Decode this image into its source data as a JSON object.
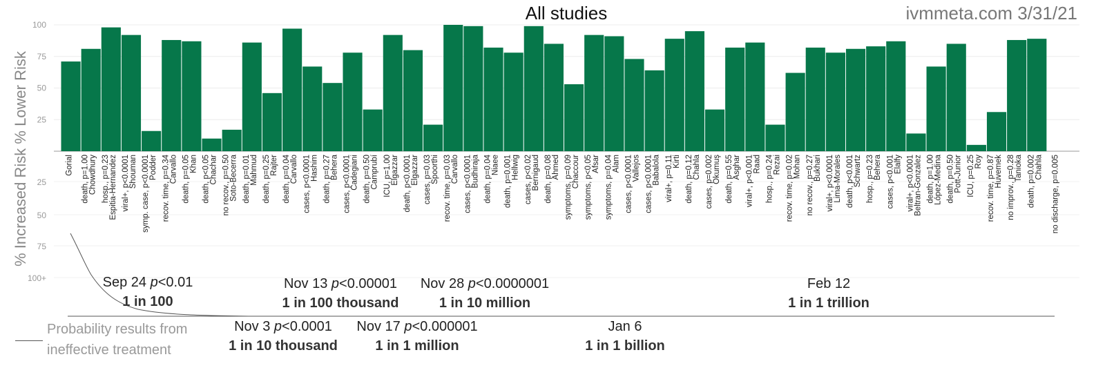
{
  "header": {
    "title": "All studies",
    "brand": "ivmmeta.com 3/31/21"
  },
  "legend": {
    "line1": "Probability results from",
    "line2": "ineffective treatment"
  },
  "chart_data": {
    "type": "bar",
    "title": "All studies",
    "ylabel": "% Increased Risk % Lower Risk",
    "ylim": [
      0,
      100
    ],
    "yticks_upper": [
      "100",
      "75",
      "50",
      "25"
    ],
    "yticks_lower": [
      "25",
      "50",
      "75",
      "100+"
    ],
    "bar_color": "#06774a",
    "grid": true,
    "bars": [
      {
        "label": "Gorial",
        "value": 71
      },
      {
        "label": "death, p=1.00\nChowdhury",
        "value": 81
      },
      {
        "label": "hosp., p=0.23\nEspitia-Hernandez",
        "value": 98
      },
      {
        "label": "viral+, p<0.0001\nShouman",
        "value": 92
      },
      {
        "label": "symp. case, p<0.0001\nPodder",
        "value": 16
      },
      {
        "label": "recov. time, p=0.34\nCarvallo",
        "value": 88
      },
      {
        "label": "death, p=0.05\nKhan",
        "value": 87
      },
      {
        "label": "death, p<0.05\nChachar",
        "value": 10
      },
      {
        "label": "no recov., p=0.50\nSoto-Becerra",
        "value": 17
      },
      {
        "label": "death, p=0.01\nMahmud",
        "value": 86
      },
      {
        "label": "death, p=0.25\nRajter",
        "value": 46
      },
      {
        "label": "death, p=0.04\nCarvallo",
        "value": 97
      },
      {
        "label": "cases, p<0.0001\nHashim",
        "value": 67
      },
      {
        "label": "death, p=0.27\nBehera",
        "value": 54
      },
      {
        "label": "cases, p<0.0001\nCadegiani",
        "value": 78
      },
      {
        "label": "death, p=0.50\nCamprubí",
        "value": 33
      },
      {
        "label": "ICU, p=1.00\nElgazzar",
        "value": 92
      },
      {
        "label": "death, p<0.0001\nElgazzar",
        "value": 80
      },
      {
        "label": "cases, p=0.03\nSpoorthi",
        "value": 21
      },
      {
        "label": "recov. time, p=0.03\nCarvallo",
        "value": 100
      },
      {
        "label": "cases, p<0.0001\nBudhiraja",
        "value": 99
      },
      {
        "label": "death, p=0.04\nNiaee",
        "value": 82
      },
      {
        "label": "death, p=0.001\nHellwig",
        "value": 78
      },
      {
        "label": "cases, p<0.02\nBernigaud",
        "value": 99
      },
      {
        "label": "death, p=0.08\nAhmed",
        "value": 85
      },
      {
        "label": "symptoms, p=0.09\nChaccour",
        "value": 53
      },
      {
        "label": "symptoms, p<0.05\nAfsar",
        "value": 92
      },
      {
        "label": "symptoms, p=0.04\nAlam",
        "value": 91
      },
      {
        "label": "cases, p<0.0001\nVallejos",
        "value": 73
      },
      {
        "label": "cases, p<0.0001\nBabalola",
        "value": 64
      },
      {
        "label": "viral+, p=0.11\nKirti",
        "value": 89
      },
      {
        "label": "death, p=0.12\nChahla",
        "value": 95
      },
      {
        "label": "cases, p=0.002\nOkumuş",
        "value": 33
      },
      {
        "label": "death, p=0.55\nAsghar",
        "value": 82
      },
      {
        "label": "viral+, p<0.001\nRaad",
        "value": 86
      },
      {
        "label": "hosp., p=0.24\nRezai",
        "value": 21
      },
      {
        "label": "recov. time, p=0.02\nMohan",
        "value": 62
      },
      {
        "label": "no recov., p=0.27\nBukhari",
        "value": 82
      },
      {
        "label": "viral+, p<0.0001\nLima-Morales",
        "value": 78
      },
      {
        "label": "death, p<0.001\nSchwartz",
        "value": 81
      },
      {
        "label": "hosp., p=0.23\nBehera",
        "value": 83
      },
      {
        "label": "cases, p<0.001\nElalfy",
        "value": 87
      },
      {
        "label": "viral+, p<0.0001\nBeltran-Gonzalez",
        "value": 14
      },
      {
        "label": "death, p=1.00\nLópez-Medina",
        "value": 67
      },
      {
        "label": "death, p=0.50\nPott-Junior",
        "value": 85
      },
      {
        "label": "ICU, p=0.25\nRoy",
        "value": 5
      },
      {
        "label": "recov. time, p=0.87\nHuvemek",
        "value": 31
      },
      {
        "label": "no improv., p=0.28\nTanioka",
        "value": 88
      },
      {
        "label": "death, p=0.002\nChahla",
        "value": 89
      },
      {
        "label": "no discharge, p=0.005",
        "value": null
      }
    ],
    "cumulative_p_curve": {
      "events": [
        {
          "date": "Sep 24",
          "p": "p<0.01",
          "odds": "1 in 100"
        },
        {
          "date": "Nov 3",
          "p": "p<0.0001",
          "odds": "1 in 10 thousand"
        },
        {
          "date": "Nov 13",
          "p": "p<0.00001",
          "odds": "1 in 100 thousand"
        },
        {
          "date": "Nov 17",
          "p": "p<0.000001",
          "odds": "1 in 1 million"
        },
        {
          "date": "Nov 28",
          "p": "p<0.0000001",
          "odds": "1 in 10 million"
        },
        {
          "date": "Jan 6",
          "p": "",
          "odds": "1 in 1 billion"
        },
        {
          "date": "Feb 12",
          "p": "",
          "odds": "1 in 1 trillion"
        }
      ]
    }
  }
}
